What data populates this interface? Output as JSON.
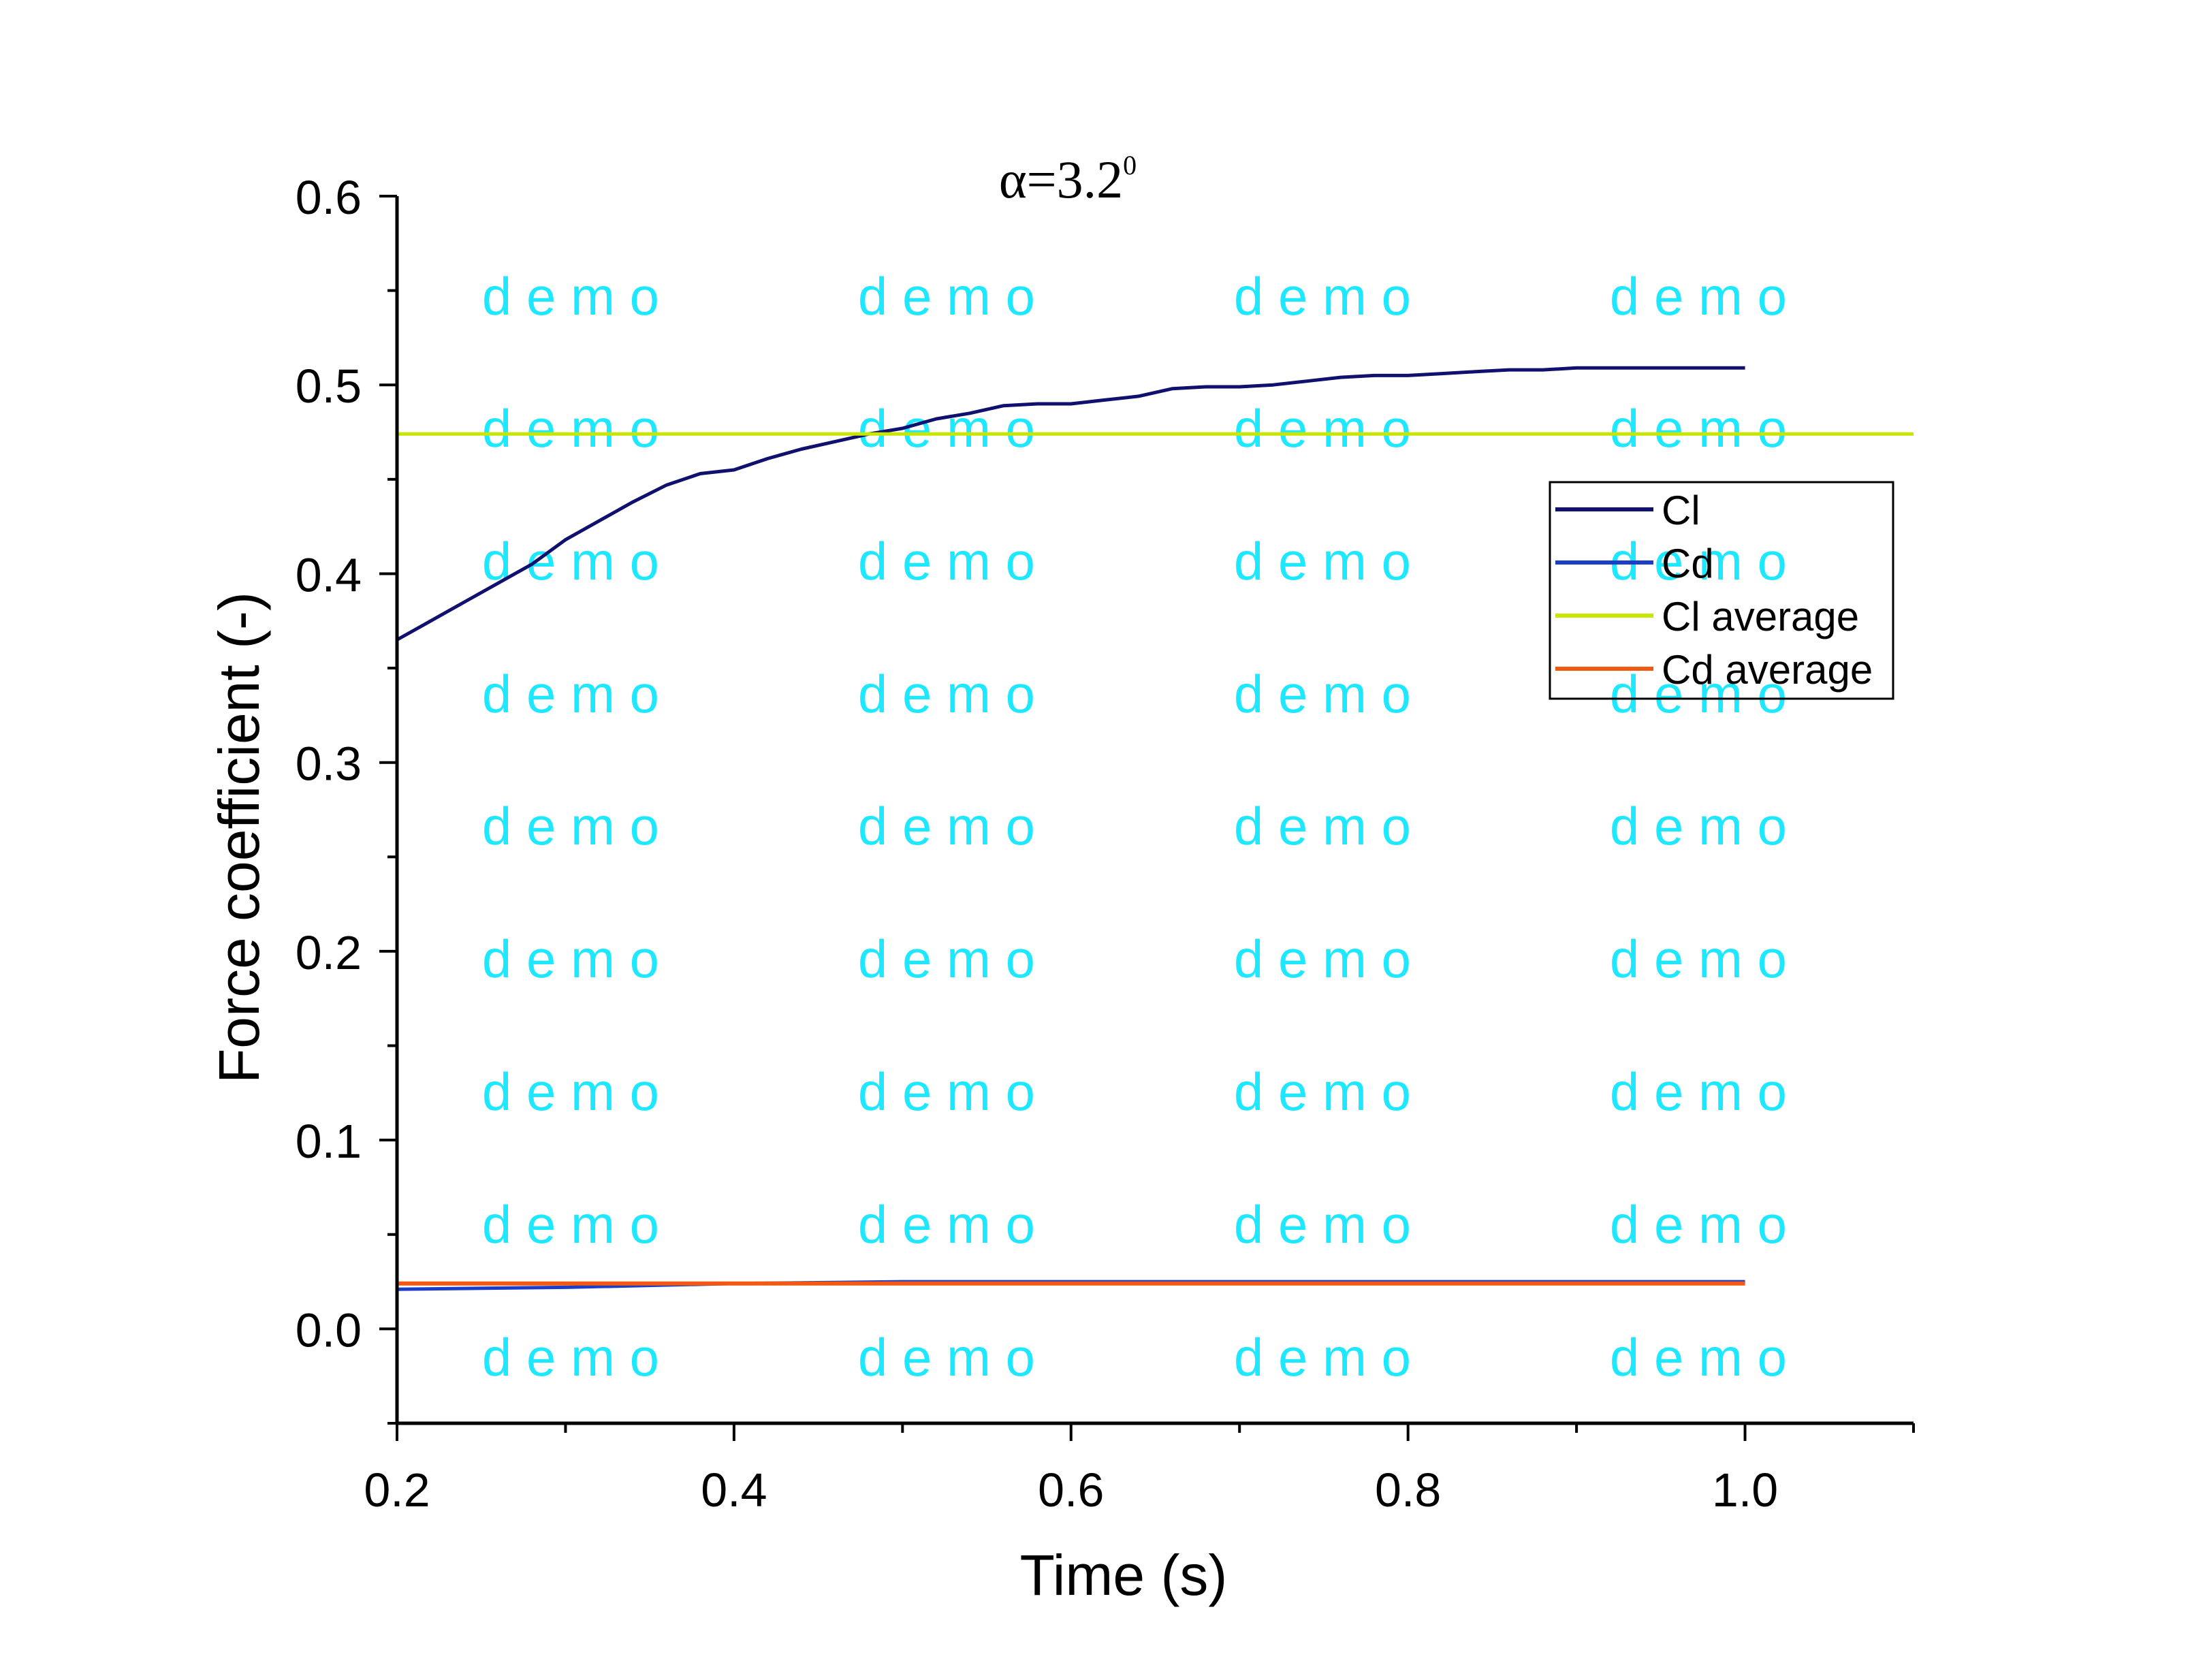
{
  "chart_data": {
    "type": "line",
    "title": "α=3.2",
    "title_superscript": "0",
    "xlabel": "Time (s)",
    "ylabel": "Force coefficient (-)",
    "xlim": [
      0.2,
      1.1
    ],
    "ylim": [
      -0.05,
      0.6
    ],
    "x_ticks": [
      0.2,
      0.4,
      0.6,
      0.8,
      1.0
    ],
    "x_tick_labels": [
      "0.2",
      "0.4",
      "0.6",
      "0.8",
      "1.0"
    ],
    "y_ticks": [
      0.0,
      0.1,
      0.2,
      0.3,
      0.4,
      0.5,
      0.6
    ],
    "y_tick_labels": [
      "0.0",
      "0.1",
      "0.2",
      "0.3",
      "0.4",
      "0.5",
      "0.6"
    ],
    "grid": false,
    "legend_position": "right",
    "watermark": "d e m o",
    "series": [
      {
        "name": "Cl",
        "color": "#10106e",
        "x": [
          0.2,
          0.22,
          0.24,
          0.26,
          0.28,
          0.3,
          0.32,
          0.34,
          0.36,
          0.38,
          0.4,
          0.42,
          0.44,
          0.46,
          0.48,
          0.5,
          0.52,
          0.54,
          0.56,
          0.58,
          0.6,
          0.62,
          0.64,
          0.66,
          0.68,
          0.7,
          0.72,
          0.74,
          0.76,
          0.78,
          0.8,
          0.82,
          0.84,
          0.86,
          0.88,
          0.9,
          0.92,
          0.94,
          0.96,
          0.98,
          1.0
        ],
        "y": [
          0.365,
          0.375,
          0.385,
          0.395,
          0.405,
          0.418,
          0.428,
          0.438,
          0.447,
          0.453,
          0.455,
          0.461,
          0.466,
          0.47,
          0.474,
          0.477,
          0.482,
          0.485,
          0.489,
          0.49,
          0.49,
          0.492,
          0.494,
          0.498,
          0.499,
          0.499,
          0.5,
          0.502,
          0.504,
          0.505,
          0.505,
          0.506,
          0.507,
          0.508,
          0.508,
          0.509,
          0.509,
          0.509,
          0.509,
          0.509,
          0.509
        ]
      },
      {
        "name": "Cd",
        "color": "#1a3ec8",
        "x": [
          0.2,
          0.3,
          0.4,
          0.5,
          0.6,
          0.7,
          0.8,
          0.9,
          1.0
        ],
        "y": [
          0.021,
          0.022,
          0.024,
          0.025,
          0.025,
          0.025,
          0.025,
          0.025,
          0.025
        ]
      },
      {
        "name": "Cl average",
        "color": "#c8e600",
        "x": [
          0.2,
          1.1
        ],
        "y": [
          0.474,
          0.474
        ]
      },
      {
        "name": "Cd average",
        "color": "#f25a14",
        "x": [
          0.2,
          1.0
        ],
        "y": [
          0.024,
          0.024
        ]
      }
    ]
  }
}
